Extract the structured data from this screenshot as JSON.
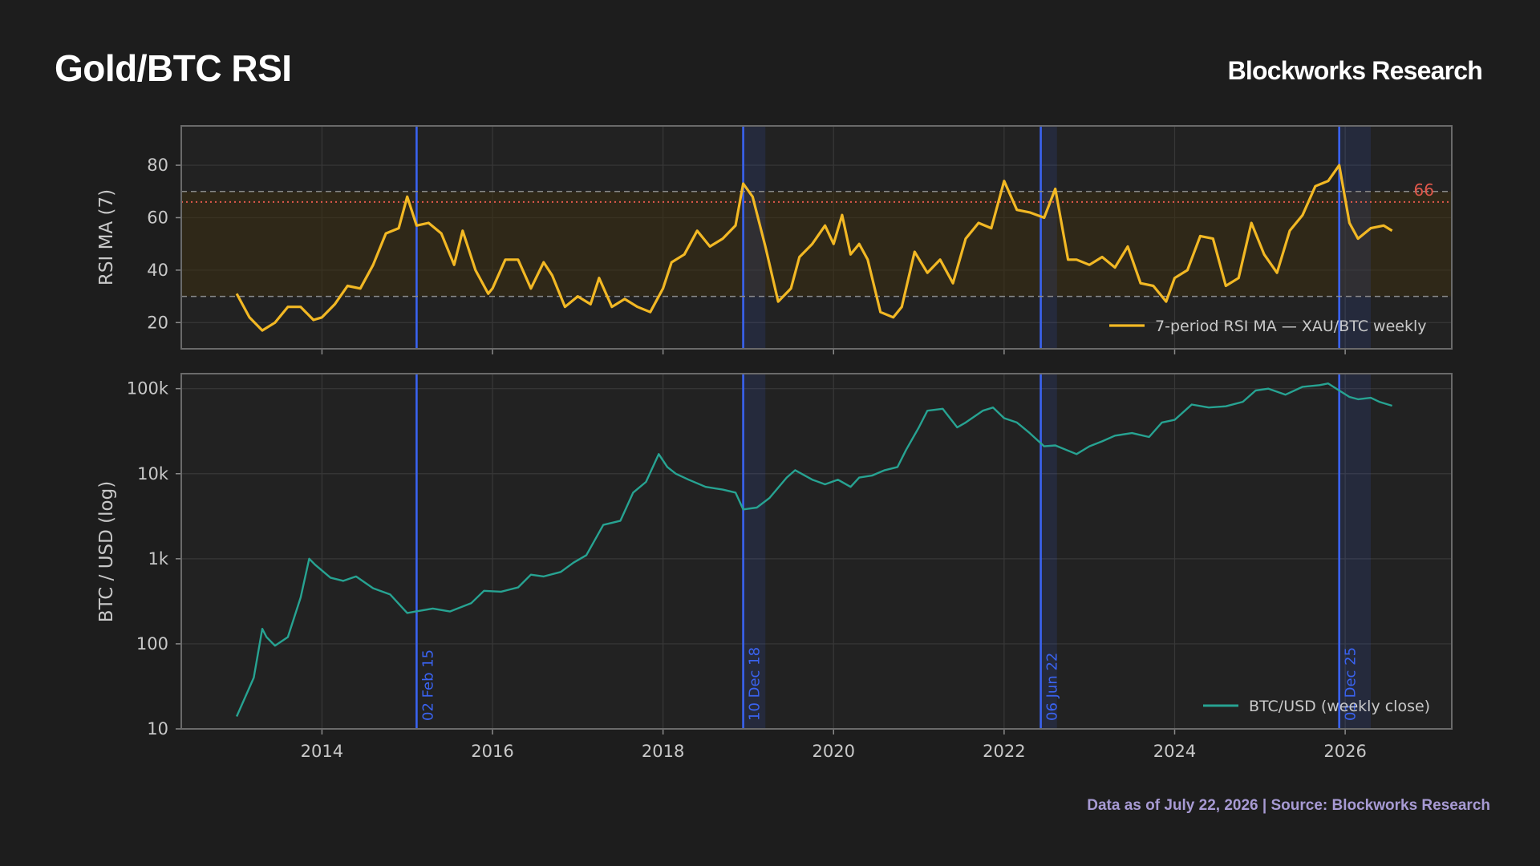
{
  "header": {
    "title": "Gold/BTC RSI",
    "brand": "Blockworks Research"
  },
  "footer": {
    "note": "Data as of July 22, 2026 | Source: Blockworks Research"
  },
  "colors": {
    "background": "#1d1d1d",
    "panel": "#222222",
    "rsi_line": "#f2b824",
    "btc_line": "#27a392",
    "event_line": "#3a63f0",
    "threshold": "#e0584b",
    "band_fill": "#3b2d10",
    "guide": "#8a8a8a"
  },
  "chart_data": [
    {
      "type": "line",
      "ylabel": "RSI MA (7)",
      "xlim": [
        2012.35,
        2027.25
      ],
      "ylim": [
        10,
        95
      ],
      "yticks": [
        20,
        40,
        60,
        80
      ],
      "grid": true,
      "band": [
        30,
        70
      ],
      "threshold": {
        "value": 66,
        "label": "66"
      },
      "legend": {
        "label": "7-period RSI MA — XAU/BTC weekly",
        "placement": "bottom-right"
      },
      "series": [
        {
          "name": "7-period RSI MA — XAU/BTC weekly",
          "x": [
            2013.0,
            2013.15,
            2013.3,
            2013.45,
            2013.6,
            2013.75,
            2013.9,
            2014.0,
            2014.15,
            2014.3,
            2014.45,
            2014.6,
            2014.75,
            2014.9,
            2015.0,
            2015.11,
            2015.25,
            2015.4,
            2015.55,
            2015.65,
            2015.8,
            2015.95,
            2016.0,
            2016.15,
            2016.3,
            2016.45,
            2016.6,
            2016.7,
            2016.85,
            2017.0,
            2017.15,
            2017.25,
            2017.4,
            2017.55,
            2017.7,
            2017.85,
            2018.0,
            2018.1,
            2018.25,
            2018.4,
            2018.55,
            2018.7,
            2018.85,
            2018.94,
            2019.05,
            2019.2,
            2019.35,
            2019.5,
            2019.6,
            2019.75,
            2019.9,
            2020.0,
            2020.1,
            2020.2,
            2020.3,
            2020.4,
            2020.55,
            2020.7,
            2020.8,
            2020.95,
            2021.1,
            2021.25,
            2021.4,
            2021.55,
            2021.7,
            2021.85,
            2022.0,
            2022.15,
            2022.3,
            2022.47,
            2022.6,
            2022.75,
            2022.85,
            2023.0,
            2023.15,
            2023.3,
            2023.45,
            2023.6,
            2023.75,
            2023.9,
            2024.0,
            2024.15,
            2024.3,
            2024.45,
            2024.6,
            2024.75,
            2024.9,
            2025.05,
            2025.2,
            2025.35,
            2025.5,
            2025.65,
            2025.8,
            2025.93,
            2026.05,
            2026.15,
            2026.3,
            2026.45,
            2026.55
          ],
          "y": [
            31,
            22,
            17,
            20,
            26,
            26,
            21,
            22,
            27,
            34,
            33,
            42,
            54,
            56,
            68,
            57,
            58,
            54,
            42,
            55,
            40,
            31,
            33,
            44,
            44,
            33,
            43,
            38,
            26,
            30,
            27,
            37,
            26,
            29,
            26,
            24,
            33,
            43,
            46,
            55,
            49,
            52,
            57,
            73,
            68,
            49,
            28,
            33,
            45,
            50,
            57,
            50,
            61,
            46,
            50,
            44,
            24,
            22,
            26,
            47,
            39,
            44,
            35,
            52,
            58,
            56,
            74,
            63,
            62,
            60,
            71,
            44,
            44,
            42,
            45,
            41,
            49,
            35,
            34,
            28,
            37,
            40,
            53,
            52,
            34,
            37,
            58,
            46,
            39,
            55,
            61,
            72,
            74,
            80,
            58,
            52,
            56,
            57,
            55
          ]
        }
      ]
    },
    {
      "type": "line",
      "ylabel": "BTC / USD (log)",
      "yscale": "log",
      "xlim": [
        2012.35,
        2027.25
      ],
      "ylim": [
        10,
        150000
      ],
      "yticks": [
        10,
        100,
        1000,
        10000,
        100000
      ],
      "yticklabels": [
        "10",
        "100",
        "1k",
        "10k",
        "100k"
      ],
      "xticks": [
        2014,
        2016,
        2018,
        2020,
        2022,
        2024,
        2026
      ],
      "grid": true,
      "legend": {
        "label": "BTC/USD (weekly close)",
        "placement": "bottom-right"
      },
      "series": [
        {
          "name": "BTC/USD (weekly close)",
          "x": [
            2013.0,
            2013.2,
            2013.3,
            2013.35,
            2013.45,
            2013.6,
            2013.75,
            2013.85,
            2013.92,
            2014.1,
            2014.25,
            2014.4,
            2014.6,
            2014.8,
            2015.0,
            2015.1,
            2015.3,
            2015.5,
            2015.75,
            2015.9,
            2016.1,
            2016.3,
            2016.45,
            2016.6,
            2016.8,
            2016.95,
            2017.1,
            2017.3,
            2017.5,
            2017.65,
            2017.8,
            2017.95,
            2018.05,
            2018.15,
            2018.3,
            2018.5,
            2018.7,
            2018.85,
            2018.94,
            2019.1,
            2019.25,
            2019.45,
            2019.55,
            2019.75,
            2019.9,
            2020.05,
            2020.2,
            2020.3,
            2020.45,
            2020.6,
            2020.75,
            2020.85,
            2021.0,
            2021.1,
            2021.28,
            2021.45,
            2021.55,
            2021.75,
            2021.87,
            2022.0,
            2022.15,
            2022.3,
            2022.47,
            2022.6,
            2022.85,
            2023.0,
            2023.15,
            2023.3,
            2023.5,
            2023.7,
            2023.85,
            2024.0,
            2024.2,
            2024.4,
            2024.6,
            2024.8,
            2024.95,
            2025.1,
            2025.3,
            2025.5,
            2025.7,
            2025.8,
            2025.93,
            2026.05,
            2026.15,
            2026.3,
            2026.4,
            2026.55
          ],
          "y": [
            14,
            40,
            150,
            120,
            95,
            120,
            350,
            1000,
            850,
            600,
            550,
            620,
            450,
            380,
            230,
            240,
            260,
            240,
            300,
            420,
            410,
            460,
            650,
            620,
            700,
            900,
            1100,
            2500,
            2800,
            6000,
            8000,
            17000,
            12000,
            10000,
            8500,
            7000,
            6500,
            6000,
            3800,
            4000,
            5200,
            9000,
            11000,
            8500,
            7500,
            8500,
            7000,
            9000,
            9500,
            11000,
            12000,
            19000,
            35000,
            55000,
            58000,
            35000,
            40000,
            55000,
            60000,
            45000,
            40000,
            30000,
            21000,
            21500,
            17000,
            21000,
            24000,
            28000,
            30000,
            27000,
            40000,
            43000,
            65000,
            60000,
            62000,
            70000,
            95000,
            100000,
            85000,
            105000,
            110000,
            115000,
            95000,
            80000,
            75000,
            78000,
            70000,
            63000
          ]
        }
      ]
    }
  ],
  "events": [
    {
      "x": 2015.11,
      "label": "02 Feb 15",
      "shade_end": 2015.11
    },
    {
      "x": 2018.94,
      "label": "10 Dec 18",
      "shade_end": 2019.2
    },
    {
      "x": 2022.43,
      "label": "06 Jun 22",
      "shade_end": 2022.62
    },
    {
      "x": 2025.93,
      "label": "01 Dec 25",
      "shade_end": 2026.3
    }
  ]
}
